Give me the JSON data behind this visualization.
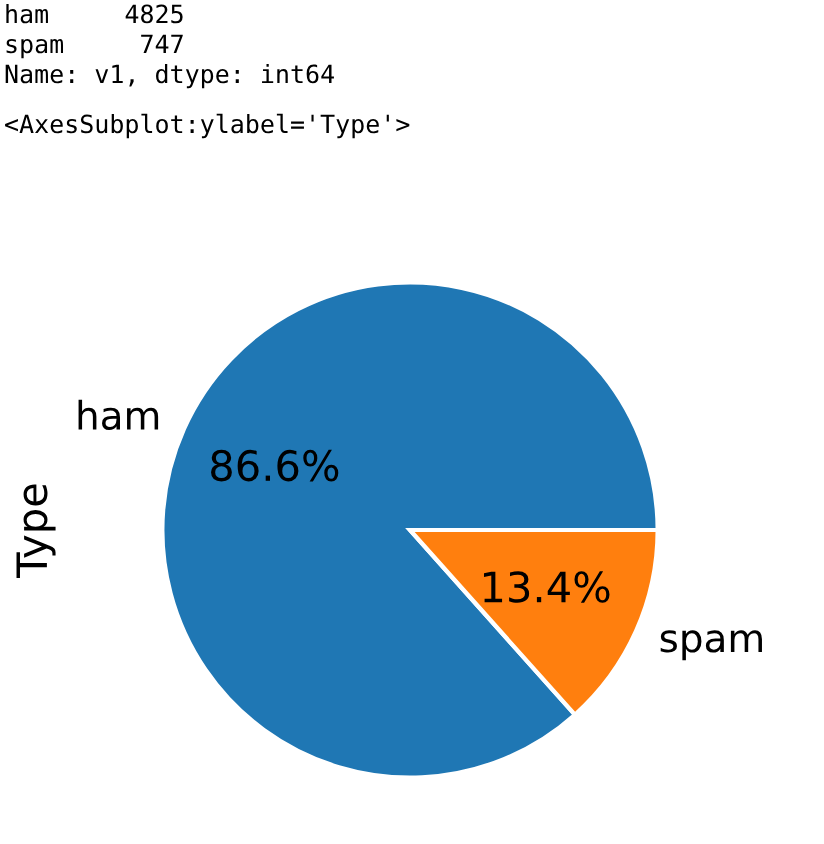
{
  "chart_data": {
    "type": "pie",
    "ylabel": "Type",
    "categories": [
      "ham",
      "spam"
    ],
    "values": [
      86.6,
      13.4
    ],
    "colors": [
      "#1f77b4",
      "#ff7f0e"
    ],
    "value_labels": [
      "86.6%",
      "13.4%"
    ],
    "annotations": [
      "ham     4825",
      "spam     747",
      "Name: v1, dtype: int64",
      "<AxesSubplot:ylabel='Type'>"
    ]
  }
}
